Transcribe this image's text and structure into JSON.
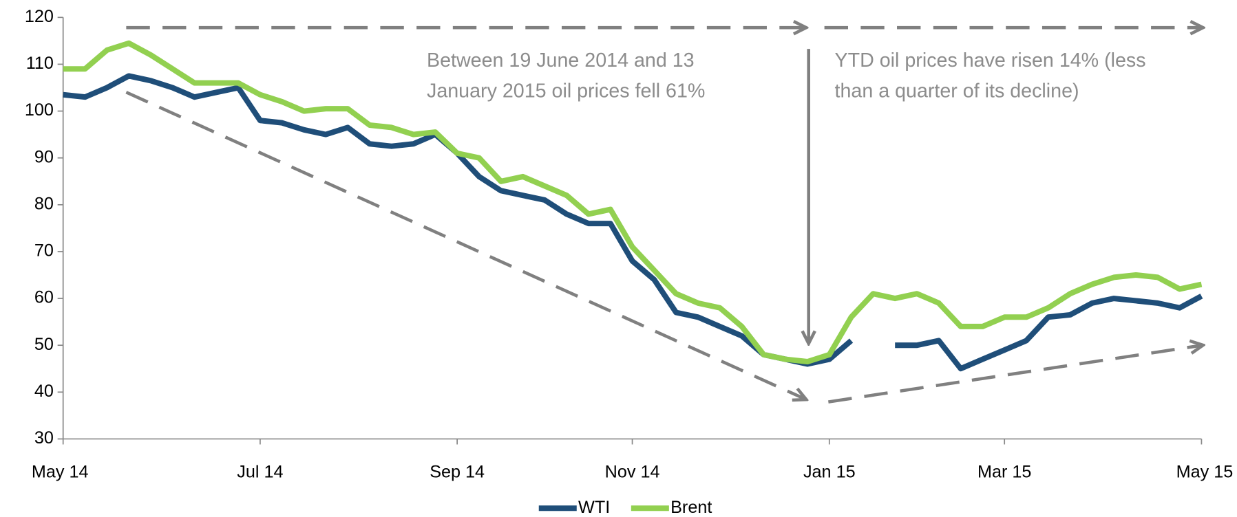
{
  "chart_data": {
    "type": "line",
    "categories": [
      "May 14",
      null,
      null,
      null,
      null,
      null,
      null,
      null,
      null,
      "Jul 14",
      null,
      null,
      null,
      null,
      null,
      null,
      null,
      null,
      "Sep 14",
      null,
      null,
      null,
      null,
      null,
      null,
      null,
      "Nov 14",
      null,
      null,
      null,
      null,
      null,
      null,
      null,
      null,
      "Jan 15",
      null,
      null,
      null,
      null,
      null,
      null,
      null,
      "Mar 15",
      null,
      null,
      null,
      null,
      null,
      null,
      null,
      null,
      "May 15"
    ],
    "series": [
      {
        "name": "WTI",
        "color": "#1f4e79",
        "values": [
          103.5,
          103,
          105,
          107.5,
          106.5,
          105,
          103,
          104,
          105,
          98,
          97.5,
          96,
          95,
          96.5,
          93,
          92.5,
          93,
          95,
          91,
          86,
          83,
          82,
          81,
          78,
          76,
          76,
          68,
          64,
          57,
          56,
          54,
          52,
          48,
          47,
          46,
          47,
          51,
          null,
          50,
          50,
          51,
          45,
          47,
          49,
          51,
          56,
          56.5,
          59,
          60,
          59.5,
          59,
          58,
          60.5
        ]
      },
      {
        "name": "Brent",
        "color": "#92d050",
        "values": [
          109,
          109,
          113,
          114.5,
          112,
          109,
          106,
          106,
          106,
          103.5,
          102,
          100,
          100.5,
          100.5,
          97,
          96.5,
          95,
          95.5,
          91,
          90,
          85,
          86,
          84,
          82,
          78,
          79,
          71,
          66,
          61,
          59,
          58,
          54,
          48,
          47,
          46.5,
          48,
          56,
          61,
          60,
          61,
          59,
          54,
          54,
          56,
          56,
          58,
          61,
          63,
          64.5,
          65,
          64.5,
          62,
          63
        ]
      }
    ],
    "ylim": [
      30,
      120
    ],
    "yticks": [
      30,
      40,
      50,
      60,
      70,
      80,
      90,
      100,
      110,
      120
    ],
    "annotations": [
      {
        "lines": [
          "Between 19 June 2014 and  13",
          "January 2015 oil prices fell  61%"
        ]
      },
      {
        "lines": [
          "YTD oil prices have risen 14% (less",
          "than a quarter of its decline)"
        ]
      }
    ],
    "legend": "bottom"
  }
}
